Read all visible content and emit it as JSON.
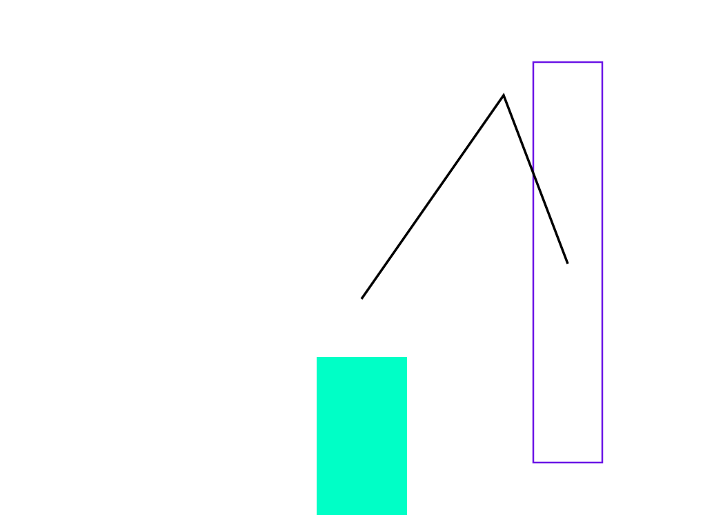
{
  "background_color": "#ffffff",
  "shapes": {
    "teal_rectangle": {
      "fill_color": "#00ffc6"
    },
    "purple_rectangle": {
      "stroke_color": "#6a13e6",
      "fill_color": "none"
    },
    "black_polyline": {
      "stroke_color": "#000000"
    }
  }
}
